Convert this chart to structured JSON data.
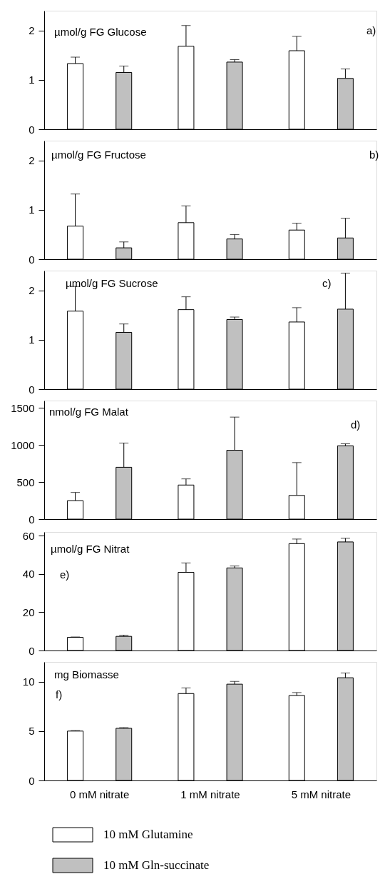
{
  "chart_data": [
    {
      "type": "bar",
      "title": "µmol/g FG Glucose",
      "annotations": [
        "a)"
      ],
      "categories": [
        "0 mM nitrate",
        "1 mM nitrate",
        "5 mM nitrate"
      ],
      "series": [
        {
          "color": "#ffffff",
          "values": [
            1.33,
            1.68,
            1.59
          ],
          "errors": [
            [
              1.33,
              1.46
            ],
            [
              1.68,
              2.1
            ],
            [
              1.59,
              1.88
            ]
          ]
        },
        {
          "color": "#c0c0c0",
          "values": [
            1.15,
            1.36,
            1.03
          ],
          "errors": [
            [
              1.15,
              1.28
            ],
            [
              1.36,
              1.41
            ],
            [
              1.03,
              1.22
            ]
          ]
        }
      ],
      "ylim": [
        0,
        2.4
      ],
      "yticks": [
        0,
        1,
        2
      ],
      "grid": false,
      "legend": false,
      "tick_labels": "y"
    },
    {
      "type": "bar",
      "title": "µmol/g FG Fructose",
      "annotations": [
        "b)"
      ],
      "categories": [
        "0 mM nitrate",
        "1 mM nitrate",
        "5 mM nitrate"
      ],
      "series": [
        {
          "color": "#ffffff",
          "values": [
            0.67,
            0.74,
            0.59
          ],
          "errors": [
            [
              0.67,
              1.32
            ],
            [
              0.74,
              1.08
            ],
            [
              0.59,
              0.73
            ]
          ]
        },
        {
          "color": "#c0c0c0",
          "values": [
            0.23,
            0.41,
            0.43
          ],
          "errors": [
            [
              0.23,
              0.35
            ],
            [
              0.41,
              0.5
            ],
            [
              0.43,
              0.83
            ]
          ]
        }
      ],
      "ylim": [
        0,
        2.4
      ],
      "yticks": [
        0,
        1,
        2
      ],
      "grid": false,
      "legend": false,
      "tick_labels": "y"
    },
    {
      "type": "bar",
      "title": "µmol/g FG Sucrose",
      "annotations": [
        "c)"
      ],
      "categories": [
        "0 mM nitrate",
        "1 mM nitrate",
        "5 mM nitrate"
      ],
      "series": [
        {
          "color": "#ffffff",
          "values": [
            1.58,
            1.61,
            1.36
          ],
          "errors": [
            [
              1.58,
              2.08
            ],
            [
              1.61,
              1.87
            ],
            [
              1.36,
              1.65
            ]
          ]
        },
        {
          "color": "#c0c0c0",
          "values": [
            1.15,
            1.41,
            1.62
          ],
          "errors": [
            [
              1.15,
              1.32
            ],
            [
              1.41,
              1.46
            ],
            [
              1.62,
              2.35
            ]
          ]
        }
      ],
      "ylim": [
        0,
        2.4
      ],
      "yticks": [
        0,
        1,
        2
      ],
      "grid": false,
      "legend": false,
      "tick_labels": "y"
    },
    {
      "type": "bar",
      "title": "nmol/g FG Malat",
      "annotations": [
        "d)"
      ],
      "categories": [
        "0 mM nitrate",
        "1 mM nitrate",
        "5 mM nitrate"
      ],
      "series": [
        {
          "color": "#ffffff",
          "values": [
            250,
            460,
            320
          ],
          "errors": [
            [
              250,
              360
            ],
            [
              460,
              543
            ],
            [
              320,
              763
            ]
          ]
        },
        {
          "color": "#c0c0c0",
          "values": [
            700,
            930,
            990
          ],
          "errors": [
            [
              700,
              1027
            ],
            [
              930,
              1377
            ],
            [
              990,
              1017
            ]
          ]
        }
      ],
      "ylim": [
        0,
        1600
      ],
      "yticks": [
        0,
        500,
        1000,
        1500
      ],
      "grid": false,
      "legend": false,
      "tick_labels": "y"
    },
    {
      "type": "bar",
      "title": "µmol/g FG Nitrat",
      "annotations": [
        "e)"
      ],
      "categories": [
        "0 mM nitrate",
        "1 mM nitrate",
        "5 mM nitrate"
      ],
      "series": [
        {
          "color": "#ffffff",
          "values": [
            6.9,
            40.9,
            55.9
          ],
          "errors": [
            [
              6.9,
              7.1
            ],
            [
              40.9,
              45.8
            ],
            [
              55.9,
              58.3
            ]
          ]
        },
        {
          "color": "#c0c0c0",
          "values": [
            7.4,
            43.2,
            56.8
          ],
          "errors": [
            [
              7.4,
              8.0
            ],
            [
              43.2,
              44.2
            ],
            [
              56.8,
              58.7
            ]
          ]
        }
      ],
      "ylim": [
        0,
        62
      ],
      "yticks": [
        0,
        20,
        40,
        60
      ],
      "grid": false,
      "legend": false,
      "tick_labels": "y"
    },
    {
      "type": "bar",
      "title": "mg Biomasse",
      "annotations": [
        "f)"
      ],
      "categories": [
        "0 mM nitrate",
        "1 mM nitrate",
        "5 mM nitrate"
      ],
      "series": [
        {
          "name": "10 mM Glutamine",
          "color": "#ffffff",
          "values": [
            5.0,
            8.8,
            8.6
          ],
          "errors": [
            [
              5.0,
              5.05
            ],
            [
              8.8,
              9.37
            ],
            [
              8.6,
              8.9
            ]
          ]
        },
        {
          "name": "10 mM Gln-succinate",
          "color": "#c0c0c0",
          "values": [
            5.28,
            9.75,
            10.4
          ],
          "errors": [
            [
              5.28,
              5.35
            ],
            [
              9.75,
              10.03
            ],
            [
              10.4,
              10.88
            ]
          ]
        }
      ],
      "ylim": [
        0,
        12
      ],
      "yticks": [
        0,
        5,
        10
      ],
      "grid": false,
      "legend": "bottom"
    }
  ]
}
